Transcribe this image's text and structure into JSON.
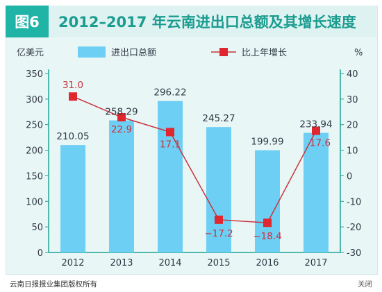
{
  "header": {
    "badge": "图6",
    "title": "2012–2017 年云南进出口总额及其增长速度"
  },
  "footer": {
    "source": "云南日报报业集团版权所有",
    "close_label": "关闭"
  },
  "colors": {
    "bar": "#6dcff3",
    "line": "#c9333c",
    "marker": "#e0262e",
    "axis": "#1aa394",
    "text": "#2f3a44"
  },
  "chart_data": {
    "type": "bar",
    "categories": [
      "2012",
      "2013",
      "2014",
      "2015",
      "2016",
      "2017"
    ],
    "y_left_label": "亿美元",
    "y_right_label": "%",
    "ylim_left": [
      0,
      350
    ],
    "ylim_right": [
      -30,
      40
    ],
    "y_left_ticks": [
      "0",
      "50",
      "100",
      "150",
      "200",
      "250",
      "300",
      "350"
    ],
    "y_right_ticks": [
      "-30",
      "-20",
      "-10",
      "0",
      "10",
      "20",
      "30",
      "40"
    ],
    "legend_placement": "top",
    "series": [
      {
        "name": "进出口总额",
        "type": "bar",
        "axis": "left",
        "values": [
          210.05,
          258.29,
          296.22,
          245.27,
          199.99,
          233.94
        ],
        "labels": [
          "210.05",
          "258.29",
          "296.22",
          "245.27",
          "199.99",
          "233.94"
        ]
      },
      {
        "name": "比上年增长",
        "type": "line",
        "axis": "right",
        "values": [
          31.0,
          22.9,
          17.1,
          -17.2,
          -18.4,
          17.6
        ],
        "labels": [
          "31.0",
          "22.9",
          "17.1",
          "−17.2",
          "−18.4",
          "17.6"
        ]
      }
    ]
  }
}
